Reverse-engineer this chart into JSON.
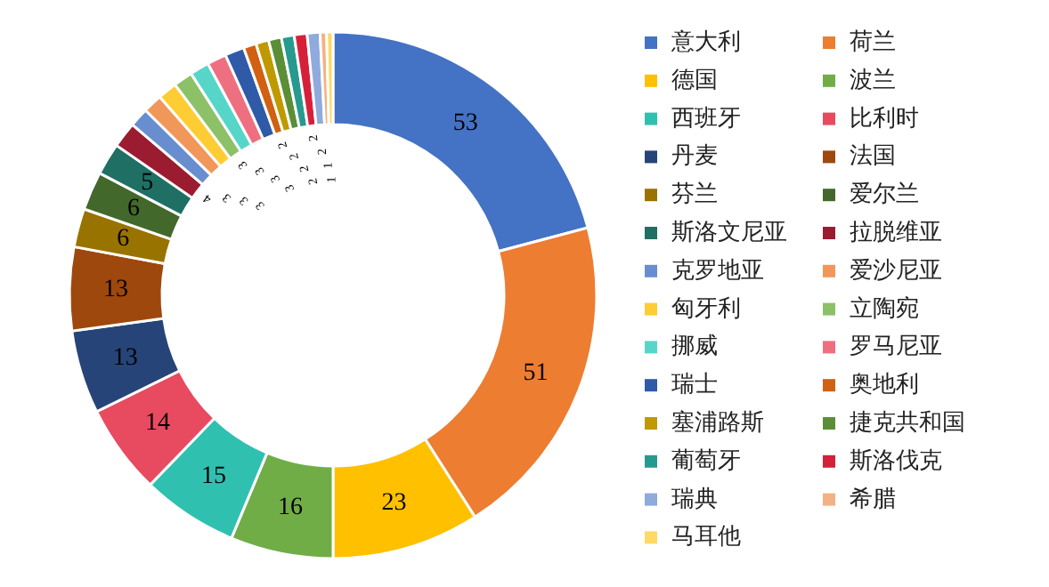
{
  "chart_data": {
    "type": "donut",
    "categories": [
      "意大利",
      "荷兰",
      "德国",
      "波兰",
      "西班牙",
      "比利时",
      "丹麦",
      "法国",
      "芬兰",
      "爱尔兰",
      "斯洛文尼亚",
      "拉脱维亚",
      "克罗地亚",
      "爱沙尼亚",
      "匈牙利",
      "立陶宛",
      "挪威",
      "罗马尼亚",
      "瑞士",
      "奥地利",
      "塞浦路斯",
      "捷克共和国",
      "葡萄牙",
      "斯洛伐克",
      "瑞典",
      "希腊",
      "马耳他"
    ],
    "values": [
      53,
      51,
      23,
      16,
      15,
      14,
      13,
      13,
      6,
      6,
      5,
      4,
      3,
      3,
      3,
      3,
      3,
      3,
      3,
      2,
      2,
      2,
      2,
      2,
      2,
      1,
      1
    ],
    "colors": [
      "#4472c4",
      "#ed7d31",
      "#ffc000",
      "#70ad47",
      "#30c0b0",
      "#e84a5f",
      "#264478",
      "#9e480e",
      "#997300",
      "#43682b",
      "#1f6f65",
      "#9b1b30",
      "#698ed0",
      "#f1975a",
      "#ffcd33",
      "#8cc168",
      "#56d6c9",
      "#ee7080",
      "#2f5aa8",
      "#d26012",
      "#be9a00",
      "#5a8f38",
      "#269a8e",
      "#d6203a",
      "#8faadc",
      "#f4b183",
      "#ffd966"
    ],
    "data_labels": true,
    "legend": "right"
  }
}
